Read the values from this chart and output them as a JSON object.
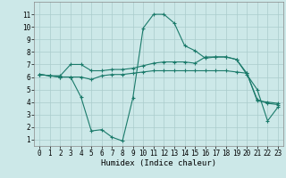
{
  "xlabel": "Humidex (Indice chaleur)",
  "xlim": [
    -0.5,
    23.5
  ],
  "ylim": [
    0.5,
    12
  ],
  "yticks": [
    1,
    2,
    3,
    4,
    5,
    6,
    7,
    8,
    9,
    10,
    11
  ],
  "xticks": [
    0,
    1,
    2,
    3,
    4,
    5,
    6,
    7,
    8,
    9,
    10,
    11,
    12,
    13,
    14,
    15,
    16,
    17,
    18,
    19,
    20,
    21,
    22,
    23
  ],
  "bg_color": "#cce8e8",
  "grid_color": "#aacccc",
  "line_color": "#1a7a6a",
  "line1_x": [
    0,
    1,
    2,
    3,
    4,
    5,
    6,
    7,
    8,
    9,
    10,
    11,
    12,
    13,
    14,
    15,
    16,
    17,
    18,
    19,
    20,
    21,
    22,
    23
  ],
  "line1_y": [
    6.2,
    6.1,
    6.0,
    6.0,
    4.4,
    1.7,
    1.8,
    1.2,
    0.9,
    4.3,
    9.9,
    11.0,
    11.0,
    10.3,
    8.5,
    8.1,
    7.5,
    7.6,
    7.6,
    7.4,
    6.2,
    5.0,
    2.5,
    3.6
  ],
  "line2_x": [
    0,
    1,
    2,
    3,
    4,
    5,
    6,
    7,
    8,
    9,
    10,
    11,
    12,
    13,
    14,
    15,
    16,
    17,
    18,
    19,
    20,
    21,
    22,
    23
  ],
  "line2_y": [
    6.2,
    6.1,
    6.0,
    6.0,
    6.0,
    5.8,
    6.1,
    6.2,
    6.2,
    6.3,
    6.4,
    6.5,
    6.5,
    6.5,
    6.5,
    6.5,
    6.5,
    6.5,
    6.5,
    6.4,
    6.3,
    4.1,
    4.0,
    3.9
  ],
  "line3_x": [
    0,
    1,
    2,
    3,
    4,
    5,
    6,
    7,
    8,
    9,
    10,
    11,
    12,
    13,
    14,
    15,
    16,
    17,
    18,
    19,
    20,
    21,
    22,
    23
  ],
  "line3_y": [
    6.2,
    6.1,
    6.1,
    7.0,
    7.0,
    6.5,
    6.5,
    6.6,
    6.6,
    6.7,
    6.9,
    7.1,
    7.2,
    7.2,
    7.2,
    7.1,
    7.6,
    7.6,
    7.6,
    7.4,
    6.3,
    4.2,
    3.9,
    3.8
  ],
  "marker_size": 2.5,
  "line_width": 0.8,
  "tick_fontsize": 5.5,
  "xlabel_fontsize": 6.5
}
